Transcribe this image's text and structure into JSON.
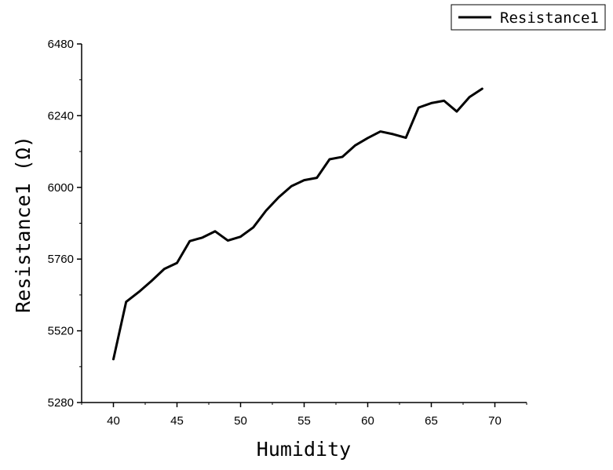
{
  "chart_data": {
    "type": "line",
    "xlabel": "Humidity",
    "ylabel": "Resistance1 (Ω)",
    "xlim": [
      37.5,
      72.5
    ],
    "ylim": [
      5280,
      6480
    ],
    "xticks": [
      40,
      45,
      50,
      55,
      60,
      65,
      70
    ],
    "yticks": [
      5280,
      5520,
      5760,
      6000,
      6240,
      6480
    ],
    "legend_position": "top-right",
    "grid": false,
    "series": [
      {
        "name": "Resistance1",
        "color": "#000000",
        "x": [
          40,
          41,
          42,
          43,
          44,
          45,
          46,
          47,
          48,
          49,
          50,
          51,
          52,
          53,
          54,
          55,
          56,
          57,
          58,
          59,
          60,
          61,
          62,
          63,
          64,
          65,
          66,
          67,
          68,
          69
        ],
        "y": [
          5425,
          5617,
          5650,
          5687,
          5727,
          5747,
          5820,
          5832,
          5853,
          5822,
          5835,
          5866,
          5922,
          5967,
          6004,
          6024,
          6032,
          6094,
          6102,
          6140,
          6165,
          6187,
          6178,
          6166,
          6267,
          6282,
          6290,
          6254,
          6302,
          6330
        ]
      }
    ]
  }
}
